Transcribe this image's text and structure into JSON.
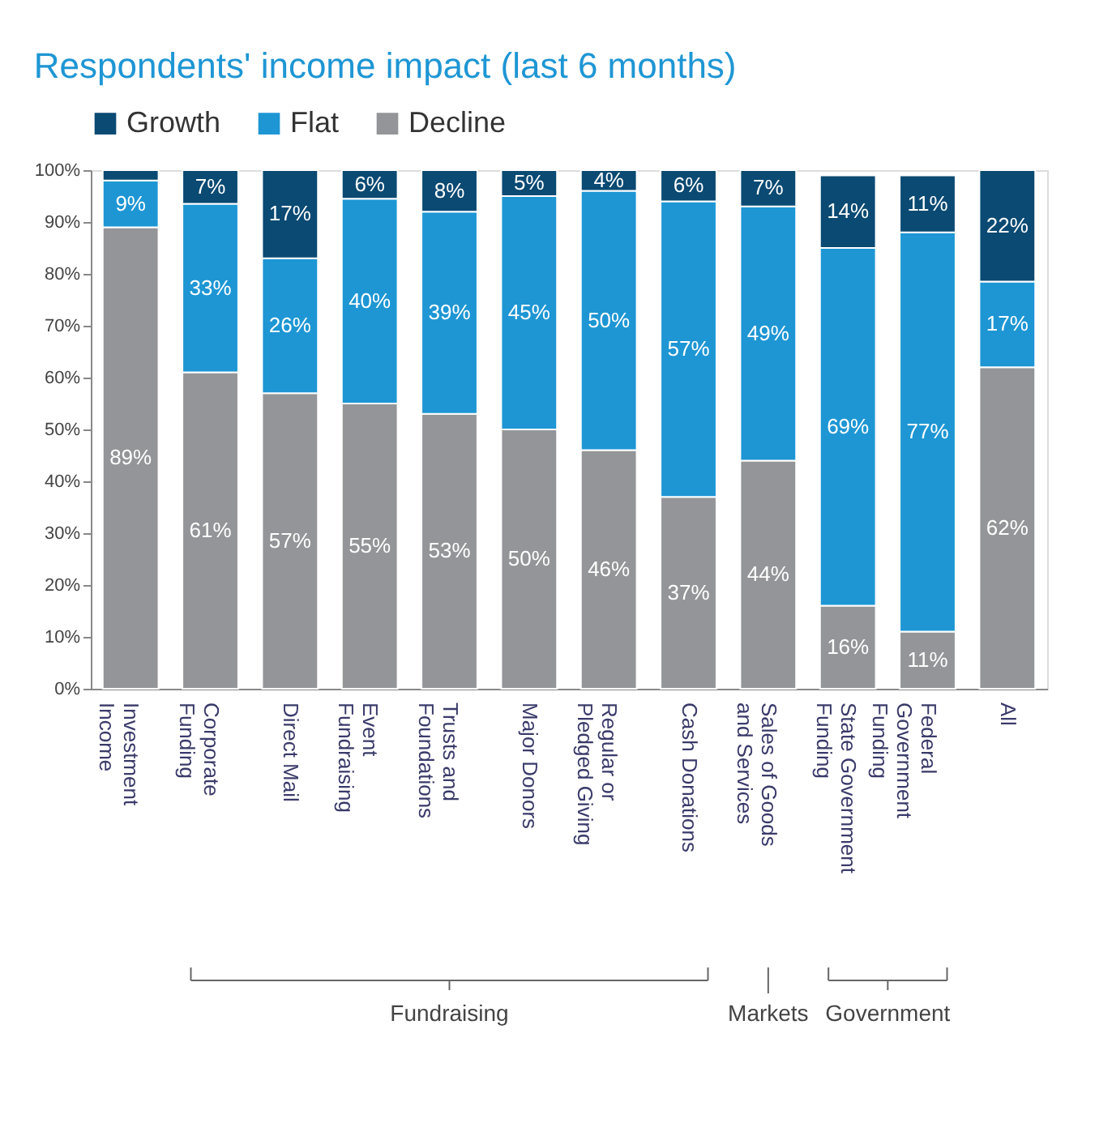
{
  "chart_data": {
    "type": "bar",
    "stacked": true,
    "title": "Respondents' income impact (last 6 months)",
    "categories": [
      "Investment Income",
      "Corporate Funding",
      "Direct Mail",
      "Event Fundraising",
      "Trusts and Foundations",
      "Major Donors",
      "Regular or Pledged Giving",
      "Cash Donations",
      "Sales of Goods and Services",
      "State Government Funding",
      "Federal Government Funding",
      "All"
    ],
    "series": [
      {
        "name": "Decline",
        "color": "#939598",
        "values": [
          89,
          61,
          57,
          55,
          53,
          50,
          46,
          37,
          44,
          16,
          11,
          62
        ],
        "value_labels": [
          "89%",
          "61%",
          "57%",
          "55%",
          "53%",
          "50%",
          "46%",
          "37%",
          "44%",
          "16%",
          "11%",
          "62%"
        ]
      },
      {
        "name": "Flat",
        "color": "#1e96d4",
        "values": [
          9,
          32.5,
          26,
          39.5,
          39,
          45,
          50,
          57,
          49,
          69,
          77,
          16.5
        ],
        "value_labels": [
          "9%",
          "33%",
          "26%",
          "40%",
          "39%",
          "45%",
          "50%",
          "57%",
          "49%",
          "69%",
          "77%",
          "17%"
        ]
      },
      {
        "name": "Growth",
        "color": "#0a4a73",
        "values": [
          2,
          6.5,
          17,
          5.5,
          8,
          5,
          4,
          6,
          7,
          14,
          11,
          21.5
        ],
        "value_labels": [
          null,
          "7%",
          "17%",
          "6%",
          "8%",
          "5%",
          "4%",
          "6%",
          "7%",
          "14%",
          "11%",
          "22%"
        ]
      }
    ],
    "ylim": [
      0,
      100
    ],
    "yticks": [
      {
        "value": 0,
        "label": "0%"
      },
      {
        "value": 10,
        "label": "10%"
      },
      {
        "value": 20,
        "label": "20%"
      },
      {
        "value": 30,
        "label": "30%"
      },
      {
        "value": 40,
        "label": "40%"
      },
      {
        "value": 50,
        "label": "50%"
      },
      {
        "value": 60,
        "label": "60%"
      },
      {
        "value": 70,
        "label": "70%"
      },
      {
        "value": 80,
        "label": "80%"
      },
      {
        "value": 90,
        "label": "90%"
      },
      {
        "value": 100,
        "label": "100%"
      }
    ],
    "grid": false,
    "legend": "top left",
    "annotations": [
      "Fundraising",
      "Markets",
      "Government"
    ]
  }
}
